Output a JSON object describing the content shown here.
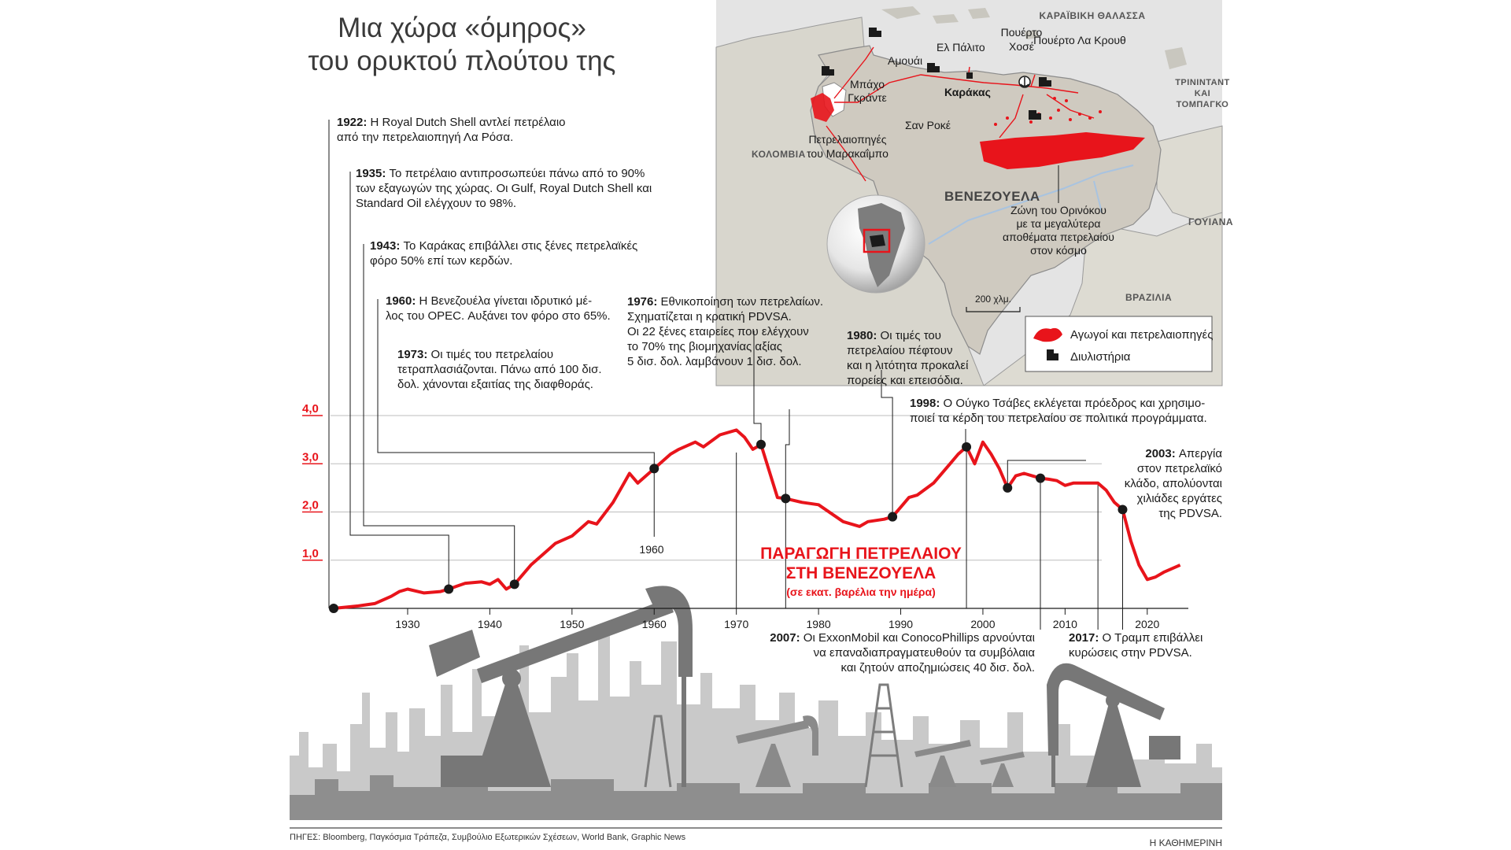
{
  "title": {
    "line1": "Μια χώρα «όμηρος»",
    "line2": "του ορυκτού πλούτου της"
  },
  "chart_data": {
    "type": "line",
    "title": "ΠΑΡΑΓΩΓΗ ΠΕΤΡΕΛΑΙΟΥ",
    "title_line2": "ΣΤΗ ΒΕΝΕΖΟΥΕΛΑ",
    "subtitle": "(σε εκατ. βαρέλια την ημέρα)",
    "x_ticks": [
      1930,
      1940,
      1950,
      1960,
      1970,
      1980,
      1990,
      2000,
      2010,
      2020
    ],
    "y_ticks": [
      "1,0",
      "2,0",
      "3,0",
      "4,0"
    ],
    "y_tick_values": [
      1,
      2,
      3,
      4
    ],
    "xlim": [
      1921,
      2025
    ],
    "ylim": [
      0,
      4
    ],
    "color": "#e8141b",
    "grid": true,
    "series": [
      {
        "x": [
          1921,
          1924,
          1926,
          1928,
          1929,
          1930,
          1932,
          1934,
          1935,
          1936,
          1937,
          1939,
          1940,
          1941,
          1942,
          1943,
          1945,
          1947,
          1948,
          1950,
          1952,
          1953,
          1955,
          1956,
          1957,
          1958,
          1960,
          1962,
          1963,
          1965,
          1966,
          1968,
          1970,
          1971,
          1972,
          1973,
          1975,
          1976,
          1978,
          1980,
          1983,
          1985,
          1986,
          1988,
          1989,
          1990,
          1991,
          1992,
          1994,
          1996,
          1997,
          1998,
          1999,
          2000,
          2001,
          2002,
          2003,
          2004,
          2005,
          2006,
          2007,
          2008,
          2009,
          2010,
          2011,
          2012,
          2014,
          2015,
          2016,
          2017,
          2018,
          2019,
          2020,
          2021,
          2022,
          2024
        ],
        "y": [
          0.0,
          0.05,
          0.1,
          0.25,
          0.35,
          0.4,
          0.32,
          0.35,
          0.4,
          0.46,
          0.52,
          0.55,
          0.5,
          0.6,
          0.4,
          0.5,
          0.9,
          1.2,
          1.35,
          1.5,
          1.8,
          1.75,
          2.2,
          2.5,
          2.8,
          2.6,
          2.9,
          3.2,
          3.3,
          3.45,
          3.35,
          3.6,
          3.7,
          3.55,
          3.3,
          3.4,
          2.3,
          2.28,
          2.2,
          2.15,
          1.8,
          1.7,
          1.8,
          1.85,
          1.9,
          2.1,
          2.3,
          2.35,
          2.6,
          3.0,
          3.2,
          3.35,
          3.0,
          3.45,
          3.2,
          2.9,
          2.5,
          2.75,
          2.8,
          2.75,
          2.7,
          2.68,
          2.65,
          2.55,
          2.6,
          2.6,
          2.6,
          2.45,
          2.2,
          2.05,
          1.4,
          0.9,
          0.6,
          0.65,
          0.75,
          0.9
        ]
      }
    ],
    "event_points": [
      {
        "x": 1921,
        "y": 0.0
      },
      {
        "x": 1935,
        "y": 0.4
      },
      {
        "x": 1943,
        "y": 0.5
      },
      {
        "x": 1960,
        "y": 2.9
      },
      {
        "x": 1973,
        "y": 3.4
      },
      {
        "x": 1976,
        "y": 2.28
      },
      {
        "x": 1989,
        "y": 1.9
      },
      {
        "x": 1998,
        "y": 3.35
      },
      {
        "x": 2003,
        "y": 2.5
      },
      {
        "x": 2007,
        "y": 2.7
      },
      {
        "x": 2017,
        "y": 2.05
      }
    ],
    "event_label_1960": "1960"
  },
  "annotations": [
    {
      "year": "1922:",
      "lines": [
        "Η Royal Dutch Shell αντλεί πετρέλαιο",
        "από την πετρελαιοπηγή Λα Ρόσα."
      ]
    },
    {
      "year": "1935:",
      "lines": [
        "Το πετρέλαιο αντιπροσωπεύει πάνω από το 90%",
        "των εξαγωγών της χώρας. Οι Gulf, Royal Dutch Shell και",
        "Standard Oil ελέγχουν το 98%."
      ]
    },
    {
      "year": "1943:",
      "lines": [
        "Το Καράκας επιβάλλει στις ξένες πετρελαϊκές",
        "φόρο 50% επί των κερδών."
      ]
    },
    {
      "year": "1960:",
      "lines": [
        "Η Βενεζουέλα γίνεται ιδρυτικό μέ-",
        "λος του OPEC. Αυξάνει τον φόρο στο 65%."
      ]
    },
    {
      "year": "1973:",
      "lines": [
        "Οι τιμές του πετρελαίου",
        "τετραπλασιάζονται. Πάνω από 100 δισ.",
        "δολ. χάνονται εξαιτίας της διαφθοράς."
      ]
    },
    {
      "year": "1976:",
      "lines": [
        "Εθνικοποίηση των πετρελαίων.",
        "Σχηματίζεται η κρατική PDVSA.",
        "Οι 22 ξένες εταιρείες που ελέγχουν",
        "το 70% της βιομηχανίας αξίας",
        "5 δισ. δολ.  λαμβάνουν 1 δισ. δολ."
      ]
    },
    {
      "year": "1980:",
      "lines": [
        "Οι τιμές του",
        "πετρελαίου πέφτουν",
        "και η λιτότητα προκαλεί",
        "πορείες και επεισόδια."
      ]
    },
    {
      "year": "1998:",
      "lines": [
        "Ο Ούγκο Τσάβες εκλέγεται πρόεδρος και χρησιμο-",
        "ποιεί τα κέρδη του πετρελαίου σε πολιτικά προγράμματα."
      ]
    },
    {
      "year": "2003:",
      "lines": [
        "Απεργία",
        "στον πετρελαϊκό",
        "κλάδο, απολύονται",
        "χιλιάδες εργάτες",
        "της PDVSA."
      ]
    },
    {
      "year": "2007:",
      "lines": [
        "Οι ExxonMobil και ConocoPhillips αρνούνται",
        "να επαναδιαπραγματευθούν τα συμβόλαια",
        "και ζητούν αποζημιώσεις 40 δισ. δολ."
      ]
    },
    {
      "year": "2017:",
      "lines": [
        "Ο Τραμπ επιβάλλει",
        "κυρώσεις στην PDVSA."
      ]
    }
  ],
  "map": {
    "sea": "ΚΑΡΑΪΒΙΚΗ ΘΑΛΑΣΣΑ",
    "colombia": "ΚΟΛΟΜΒΙΑ",
    "venezuela": "ΒΕΝΕΖΟΥΕΛΑ",
    "trinidad_1": "ΤΡΙΝΙΝΤΑΝΤ",
    "trinidad_2": "ΚΑΙ",
    "trinidad_3": "ΤΟΜΠΑΓΚΟ",
    "guyana": "ΓΟΥΙΑΝΑ",
    "brazil": "ΒΡΑΖΙΛΙΑ",
    "amuay": "Αμουάι",
    "el_palito": "Ελ Πάλιτο",
    "puerto_jose_1": "Πουέρτο",
    "puerto_jose_2": "Χοσέ",
    "puerto_la_cruz": "Πουέρτο Λα Κρουθ",
    "bajo_grande_1": "Μπάχο",
    "bajo_grande_2": "Γκράντε",
    "caracas": "Καράκας",
    "san_roque": "Σαν Ροκέ",
    "maracaibo_1": "Πετρελαιοπηγές",
    "maracaibo_2": "του Μαρακαΐμπο",
    "orinoco_1": "Ζώνη του Ορινόκου",
    "orinoco_2": "με τα μεγαλύτερα",
    "orinoco_3": "αποθέματα πετρελαίου",
    "orinoco_4": "στον κόσμο",
    "scale": "200 χλμ.",
    "legend_pipes": "Αγωγοί και πετρελαιοπηγές",
    "legend_refinery": "Διυλιστήρια"
  },
  "footer": {
    "sources": "ΠΗΓΕΣ: Bloomberg, Παγκόσμια Τράπεζα, Συμβούλιο Εξωτερικών Σχέσεων, World Bank, Graphic News",
    "brand": "Η ΚΑΘΗΜΕΡΙΝΗ"
  }
}
